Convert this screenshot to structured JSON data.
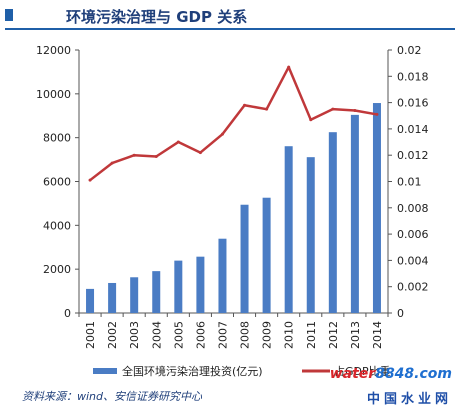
{
  "header": {
    "title": "环境污染治理与 GDP 关系"
  },
  "colors": {
    "bar": "#4a7cc4",
    "line": "#c0383a",
    "axis": "#555555",
    "title": "#1f3f7a"
  },
  "chart_data": {
    "type": "bar+line",
    "categories": [
      "2001",
      "2002",
      "2003",
      "2004",
      "2005",
      "2006",
      "2007",
      "2008",
      "2009",
      "2010",
      "2011",
      "2012",
      "2013",
      "2014"
    ],
    "series": [
      {
        "name": "全国环境污染治理投资(亿元)",
        "type": "bar",
        "axis": "left",
        "values": [
          1100,
          1370,
          1630,
          1910,
          2390,
          2570,
          3390,
          4940,
          5260,
          7610,
          7110,
          8250,
          9040,
          9580
        ]
      },
      {
        "name": "占GDP比重",
        "type": "line",
        "axis": "right",
        "values": [
          0.0101,
          0.0114,
          0.012,
          0.0119,
          0.013,
          0.0122,
          0.0136,
          0.0158,
          0.0155,
          0.0187,
          0.0147,
          0.0155,
          0.0154,
          0.0151
        ]
      }
    ],
    "left_axis": {
      "ylim": [
        0,
        12000
      ],
      "ticks": [
        "0",
        "2000",
        "4000",
        "6000",
        "8000",
        "10000",
        "12000"
      ]
    },
    "right_axis": {
      "ylim": [
        0,
        0.02
      ],
      "ticks": [
        "0",
        "0.002",
        "0.004",
        "0.006",
        "0.008",
        "0.01",
        "0.012",
        "0.014",
        "0.016",
        "0.018",
        "0.02"
      ]
    },
    "legend": {
      "position": "bottom",
      "items": [
        "全国环境污染治理投资(亿元)",
        "占GDP比重"
      ]
    }
  },
  "footer": {
    "source": "资料来源：wind、安信证券研究中心",
    "watermark_top_a": "water",
    "watermark_top_b": "8848.com",
    "watermark_bottom": "中国水业网"
  }
}
